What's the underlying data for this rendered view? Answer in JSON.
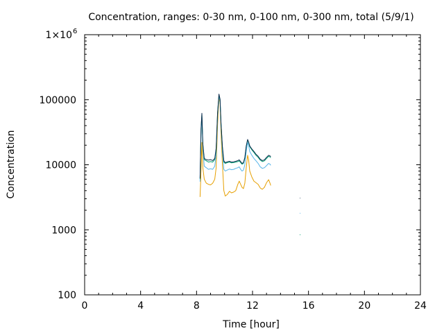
{
  "chart_data": {
    "type": "line",
    "title": "Concentration, ranges: 0-30 nm, 0-100 nm, 0-300 nm, total (5/9/1)",
    "xlabel": "Time [hour]",
    "ylabel": "Concentration",
    "xlim": [
      0,
      24
    ],
    "ylim": [
      100,
      1000000
    ],
    "yscale": "log",
    "grid": false,
    "xticks": [
      0,
      4,
      8,
      12,
      16,
      20,
      24
    ],
    "xtick_labels": [
      "0",
      "4",
      "8",
      "12",
      "16",
      "20",
      "24"
    ],
    "yticks": [
      100,
      1000,
      10000,
      100000,
      1000000
    ],
    "ytick_labels_plain": [
      "100",
      "1000",
      "10000",
      "100000"
    ],
    "ytick_top": {
      "mantissa": "1×10",
      "exponent": "6"
    },
    "series": [
      {
        "color": "#e69f00",
        "points": [
          [
            8.25,
            3200
          ],
          [
            8.32,
            8000
          ],
          [
            8.38,
            22000
          ],
          [
            8.45,
            9000
          ],
          [
            8.55,
            6000
          ],
          [
            8.7,
            5200
          ],
          [
            8.85,
            5000
          ],
          [
            9.0,
            4900
          ],
          [
            9.15,
            5200
          ],
          [
            9.3,
            6000
          ],
          [
            9.4,
            9000
          ],
          [
            9.5,
            40000
          ],
          [
            9.6,
            110000
          ],
          [
            9.68,
            90000
          ],
          [
            9.75,
            30000
          ],
          [
            9.85,
            10000
          ],
          [
            9.95,
            4000
          ],
          [
            10.05,
            3300
          ],
          [
            10.2,
            3500
          ],
          [
            10.35,
            3900
          ],
          [
            10.5,
            3700
          ],
          [
            10.65,
            3800
          ],
          [
            10.8,
            4000
          ],
          [
            10.95,
            5000
          ],
          [
            11.05,
            5600
          ],
          [
            11.15,
            5000
          ],
          [
            11.25,
            4500
          ],
          [
            11.35,
            4300
          ],
          [
            11.45,
            5200
          ],
          [
            11.55,
            9000
          ],
          [
            11.65,
            14000
          ],
          [
            11.72,
            12000
          ],
          [
            11.8,
            8000
          ],
          [
            11.95,
            6500
          ],
          [
            12.1,
            5600
          ],
          [
            12.25,
            5300
          ],
          [
            12.4,
            5000
          ],
          [
            12.55,
            4400
          ],
          [
            12.7,
            4200
          ],
          [
            12.85,
            4500
          ],
          [
            13.0,
            5300
          ],
          [
            13.15,
            5900
          ],
          [
            13.25,
            5200
          ],
          [
            13.3,
            4800
          ]
        ]
      },
      {
        "color": "#56b4e9",
        "points": [
          [
            8.25,
            5500
          ],
          [
            8.32,
            30000
          ],
          [
            8.38,
            55000
          ],
          [
            8.45,
            18000
          ],
          [
            8.55,
            9500
          ],
          [
            8.7,
            9000
          ],
          [
            8.85,
            8500
          ],
          [
            9.0,
            8700
          ],
          [
            9.15,
            8500
          ],
          [
            9.3,
            9500
          ],
          [
            9.4,
            14000
          ],
          [
            9.5,
            55000
          ],
          [
            9.6,
            115000
          ],
          [
            9.68,
            95000
          ],
          [
            9.75,
            40000
          ],
          [
            9.85,
            15000
          ],
          [
            9.95,
            8500
          ],
          [
            10.05,
            8000
          ],
          [
            10.2,
            8300
          ],
          [
            10.35,
            8600
          ],
          [
            10.5,
            8400
          ],
          [
            10.65,
            8500
          ],
          [
            10.8,
            8800
          ],
          [
            10.95,
            9000
          ],
          [
            11.05,
            9300
          ],
          [
            11.15,
            8500
          ],
          [
            11.25,
            8000
          ],
          [
            11.35,
            8300
          ],
          [
            11.45,
            10000
          ],
          [
            11.55,
            16000
          ],
          [
            11.65,
            22000
          ],
          [
            11.72,
            20000
          ],
          [
            11.8,
            16000
          ],
          [
            11.95,
            14000
          ],
          [
            12.1,
            12500
          ],
          [
            12.25,
            11500
          ],
          [
            12.4,
            10500
          ],
          [
            12.55,
            9300
          ],
          [
            12.7,
            8800
          ],
          [
            12.85,
            9000
          ],
          [
            13.0,
            9700
          ],
          [
            13.15,
            10500
          ],
          [
            13.25,
            10200
          ],
          [
            13.3,
            9800
          ]
        ]
      },
      {
        "color": "#009e73",
        "points": [
          [
            8.25,
            6000
          ],
          [
            8.32,
            35000
          ],
          [
            8.38,
            60000
          ],
          [
            8.45,
            20000
          ],
          [
            8.55,
            12000
          ],
          [
            8.7,
            11500
          ],
          [
            8.85,
            11000
          ],
          [
            9.0,
            11200
          ],
          [
            9.15,
            11000
          ],
          [
            9.3,
            12000
          ],
          [
            9.4,
            17000
          ],
          [
            9.5,
            60000
          ],
          [
            9.6,
            120000
          ],
          [
            9.68,
            100000
          ],
          [
            9.75,
            42000
          ],
          [
            9.85,
            18000
          ],
          [
            9.95,
            11000
          ],
          [
            10.05,
            10500
          ],
          [
            10.2,
            10800
          ],
          [
            10.35,
            11000
          ],
          [
            10.5,
            10700
          ],
          [
            10.65,
            10800
          ],
          [
            10.8,
            11000
          ],
          [
            10.95,
            11200
          ],
          [
            11.05,
            11500
          ],
          [
            11.15,
            10800
          ],
          [
            11.25,
            10200
          ],
          [
            11.35,
            10500
          ],
          [
            11.45,
            12500
          ],
          [
            11.55,
            19000
          ],
          [
            11.65,
            24000
          ],
          [
            11.72,
            22000
          ],
          [
            11.8,
            19000
          ],
          [
            11.95,
            17000
          ],
          [
            12.1,
            15500
          ],
          [
            12.25,
            14000
          ],
          [
            12.4,
            13000
          ],
          [
            12.55,
            11800
          ],
          [
            12.7,
            11200
          ],
          [
            12.85,
            11500
          ],
          [
            13.0,
            12500
          ],
          [
            13.15,
            13500
          ],
          [
            13.25,
            13200
          ],
          [
            13.3,
            12800
          ]
        ]
      },
      {
        "color": "#0f2d4f",
        "points": [
          [
            8.25,
            6200
          ],
          [
            8.32,
            36000
          ],
          [
            8.38,
            62000
          ],
          [
            8.45,
            21000
          ],
          [
            8.55,
            12500
          ],
          [
            8.7,
            12000
          ],
          [
            8.85,
            11800
          ],
          [
            9.0,
            12000
          ],
          [
            9.15,
            11600
          ],
          [
            9.3,
            12500
          ],
          [
            9.4,
            18000
          ],
          [
            9.5,
            62000
          ],
          [
            9.6,
            122000
          ],
          [
            9.68,
            102000
          ],
          [
            9.75,
            43000
          ],
          [
            9.85,
            19000
          ],
          [
            9.95,
            11500
          ],
          [
            10.05,
            10800
          ],
          [
            10.2,
            11100
          ],
          [
            10.35,
            11300
          ],
          [
            10.5,
            11000
          ],
          [
            10.65,
            11100
          ],
          [
            10.8,
            11300
          ],
          [
            10.95,
            11600
          ],
          [
            11.05,
            11900
          ],
          [
            11.15,
            11200
          ],
          [
            11.25,
            10500
          ],
          [
            11.35,
            10800
          ],
          [
            11.45,
            13000
          ],
          [
            11.55,
            19500
          ],
          [
            11.65,
            24500
          ],
          [
            11.72,
            22500
          ],
          [
            11.8,
            19500
          ],
          [
            11.95,
            17500
          ],
          [
            12.1,
            16000
          ],
          [
            12.25,
            14500
          ],
          [
            12.4,
            13500
          ],
          [
            12.55,
            12200
          ],
          [
            12.7,
            11600
          ],
          [
            12.85,
            11900
          ],
          [
            13.0,
            13000
          ],
          [
            13.15,
            14000
          ],
          [
            13.25,
            13700
          ],
          [
            13.3,
            13300
          ]
        ]
      },
      {
        "color": "#0f2d4f",
        "points": [
          [
            15.4,
            3050
          ],
          [
            15.4,
            3100
          ]
        ]
      },
      {
        "color": "#56b4e9",
        "points": [
          [
            15.4,
            1780
          ],
          [
            15.4,
            1820
          ]
        ]
      },
      {
        "color": "#009e73",
        "points": [
          [
            15.4,
            830
          ],
          [
            15.4,
            850
          ]
        ]
      }
    ]
  }
}
